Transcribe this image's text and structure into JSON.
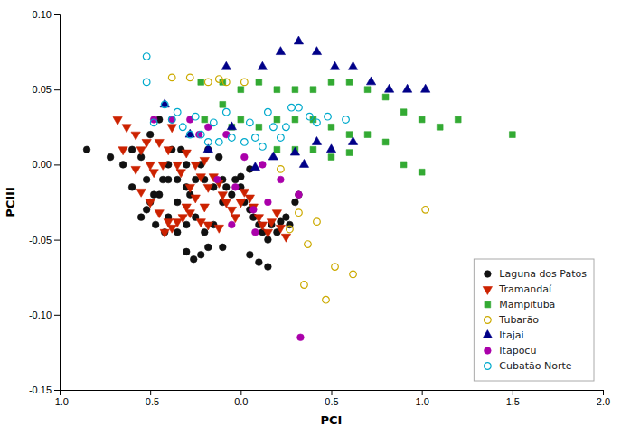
{
  "chart_data": {
    "type": "scatter",
    "xlabel": "PCI",
    "ylabel": "PCIII",
    "xlim": [
      -1.0,
      2.0
    ],
    "ylim": [
      -0.15,
      0.1
    ],
    "xticks": [
      {
        "value": -1.0,
        "label": "-1.0"
      },
      -0.5,
      {
        "value": 0.0,
        "label": "0.0"
      },
      0.5,
      {
        "value": 1.0,
        "label": "1.0"
      },
      1.5,
      {
        "value": 2.0,
        "label": "2.0"
      }
    ],
    "yticks": [
      -0.15,
      {
        "value": -0.1,
        "label": "-0.10"
      },
      -0.05,
      {
        "value": 0.0,
        "label": "0.00"
      },
      0.05,
      {
        "value": 0.1,
        "label": "0.10"
      }
    ],
    "grid": false,
    "legend": "lower right",
    "series": [
      {
        "name": "Laguna dos Patos",
        "color": "#111111",
        "marker": "circle",
        "x": [
          -0.85,
          -0.72,
          -0.65,
          -0.6,
          -0.55,
          -0.52,
          -0.5,
          -0.48,
          -0.45,
          -0.43,
          -0.4,
          -0.4,
          -0.38,
          -0.35,
          -0.33,
          -0.3,
          -0.3,
          -0.28,
          -0.25,
          -0.22,
          -0.2,
          -0.18,
          -0.15,
          -0.12,
          -0.1,
          -0.08,
          -0.05,
          -0.03,
          0.0,
          0.02,
          0.05,
          0.07,
          0.1,
          0.12,
          0.15,
          0.17,
          0.2,
          0.22,
          0.25,
          0.27,
          0.3,
          0.32,
          -0.35,
          -0.4,
          -0.45,
          -0.5,
          -0.55,
          -0.6,
          -0.25,
          -0.2,
          -0.15,
          -0.1,
          0.0,
          0.05,
          -0.3,
          -0.35,
          -0.42,
          -0.47,
          -0.52,
          -0.18,
          -0.22,
          -0.26,
          -0.3,
          -0.1,
          0.05,
          0.1,
          0.15
        ],
        "values": [
          0.01,
          0.005,
          0.0,
          0.01,
          0.005,
          -0.01,
          0.02,
          -0.02,
          0.03,
          -0.01,
          0.0,
          -0.01,
          0.01,
          -0.01,
          0.01,
          0.0,
          -0.015,
          -0.02,
          -0.01,
          0.0,
          -0.01,
          0.01,
          -0.015,
          0.005,
          -0.01,
          -0.015,
          -0.02,
          -0.01,
          -0.015,
          -0.025,
          -0.03,
          -0.035,
          -0.04,
          -0.045,
          -0.05,
          -0.04,
          -0.045,
          -0.038,
          -0.035,
          -0.04,
          -0.025,
          -0.02,
          -0.025,
          -0.035,
          -0.02,
          -0.025,
          -0.035,
          -0.015,
          -0.035,
          -0.045,
          -0.04,
          -0.025,
          -0.008,
          -0.003,
          -0.04,
          -0.045,
          -0.045,
          -0.04,
          -0.03,
          -0.055,
          -0.06,
          -0.063,
          -0.058,
          -0.055,
          -0.06,
          -0.065,
          -0.068
        ]
      },
      {
        "name": "Tramandaí",
        "color": "#cc2200",
        "marker": "triangle-down",
        "x": [
          -0.68,
          -0.63,
          -0.58,
          -0.55,
          -0.52,
          -0.5,
          -0.48,
          -0.45,
          -0.43,
          -0.4,
          -0.38,
          -0.35,
          -0.33,
          -0.3,
          -0.28,
          -0.25,
          -0.22,
          -0.2,
          -0.18,
          -0.15,
          -0.12,
          -0.1,
          -0.08,
          -0.05,
          -0.03,
          0.0,
          0.02,
          0.05,
          0.07,
          0.1,
          0.12,
          0.15,
          0.17,
          0.2,
          0.22,
          0.25,
          -0.55,
          -0.5,
          -0.45,
          -0.4,
          -0.35,
          -0.3,
          -0.25,
          -0.2,
          -0.65,
          -0.58,
          -0.42,
          -0.38,
          -0.32,
          -0.28,
          -0.22,
          -0.18,
          -0.12
        ],
        "values": [
          0.03,
          0.025,
          0.02,
          0.01,
          0.015,
          0.0,
          -0.005,
          0.015,
          0.0,
          0.01,
          0.025,
          0.0,
          -0.005,
          0.008,
          -0.015,
          0.0,
          -0.008,
          0.003,
          -0.015,
          -0.008,
          -0.012,
          -0.02,
          -0.025,
          -0.03,
          -0.035,
          -0.025,
          -0.018,
          -0.022,
          -0.028,
          -0.035,
          -0.04,
          -0.045,
          -0.038,
          -0.032,
          -0.042,
          -0.048,
          -0.018,
          -0.025,
          -0.032,
          -0.038,
          -0.038,
          -0.028,
          -0.022,
          -0.028,
          0.01,
          -0.003,
          -0.045,
          -0.042,
          -0.035,
          -0.032,
          -0.038,
          -0.04,
          -0.042
        ]
      },
      {
        "name": "Mampituba",
        "color": "#33aa33",
        "marker": "square",
        "x": [
          -0.22,
          -0.1,
          0.0,
          0.1,
          0.2,
          0.3,
          0.4,
          0.5,
          0.6,
          0.7,
          0.8,
          0.9,
          1.0,
          1.1,
          1.2,
          1.5,
          0.2,
          0.3,
          0.4,
          0.5,
          0.6,
          0.7,
          0.8,
          0.9,
          1.0,
          0.0,
          0.1,
          -0.1,
          -0.2,
          0.3,
          0.4,
          0.2,
          -0.05,
          0.5,
          0.6
        ],
        "values": [
          0.055,
          0.055,
          0.05,
          0.055,
          0.05,
          0.05,
          0.05,
          0.055,
          0.055,
          0.05,
          0.045,
          0.035,
          0.03,
          0.025,
          0.03,
          0.02,
          0.03,
          0.03,
          0.03,
          0.025,
          0.02,
          0.02,
          0.015,
          0.0,
          -0.005,
          0.03,
          0.025,
          0.04,
          0.03,
          0.01,
          0.01,
          0.01,
          0.025,
          0.005,
          0.008
        ]
      },
      {
        "name": "Tubarão",
        "color": "#ccaa00",
        "marker": "circle-open",
        "x": [
          -0.18,
          -0.08,
          0.02,
          -0.28,
          -0.38,
          0.22,
          0.32,
          0.42,
          0.52,
          0.62,
          0.37,
          0.27,
          1.02,
          -0.12,
          0.35,
          0.47
        ],
        "values": [
          0.055,
          0.055,
          0.055,
          0.058,
          0.058,
          -0.003,
          -0.032,
          -0.038,
          -0.068,
          -0.073,
          -0.053,
          -0.043,
          -0.03,
          0.057,
          -0.08,
          -0.09
        ]
      },
      {
        "name": "Itajai",
        "color": "#000088",
        "marker": "triangle-up",
        "x": [
          -0.42,
          -0.28,
          -0.08,
          0.12,
          0.32,
          0.42,
          0.52,
          0.62,
          0.72,
          0.82,
          0.92,
          1.02,
          0.22,
          0.5,
          0.62,
          0.42,
          0.3,
          0.18,
          -0.18,
          0.08,
          -0.05,
          0.35
        ],
        "values": [
          0.04,
          0.02,
          0.065,
          0.065,
          0.082,
          0.075,
          0.065,
          0.065,
          0.055,
          0.05,
          0.05,
          0.05,
          0.075,
          0.01,
          0.015,
          0.015,
          0.008,
          0.005,
          0.01,
          -0.002,
          0.025,
          0.0
        ]
      },
      {
        "name": "Itapocu",
        "color": "#aa00aa",
        "marker": "circle",
        "x": [
          -0.38,
          -0.28,
          -0.18,
          -0.08,
          0.02,
          0.12,
          0.22,
          0.32,
          -0.13,
          -0.03,
          0.07,
          0.15,
          -0.23,
          -0.48,
          0.33,
          -0.05,
          0.08
        ],
        "values": [
          0.03,
          0.03,
          0.025,
          0.02,
          0.005,
          0.0,
          -0.01,
          -0.02,
          -0.01,
          -0.015,
          -0.03,
          -0.025,
          0.02,
          0.03,
          -0.115,
          -0.04,
          -0.045
        ]
      },
      {
        "name": "Cubatão Norte",
        "color": "#00aacc",
        "marker": "circle-open",
        "x": [
          -0.52,
          -0.52,
          -0.42,
          -0.38,
          -0.32,
          -0.28,
          -0.22,
          -0.18,
          -0.12,
          -0.05,
          0.02,
          0.08,
          0.12,
          0.18,
          0.22,
          0.28,
          0.32,
          0.38,
          0.42,
          -0.48,
          -0.35,
          -0.25,
          -0.15,
          0.05,
          -0.08,
          0.15,
          0.25,
          0.48,
          0.58
        ],
        "values": [
          0.072,
          0.055,
          0.04,
          0.03,
          0.025,
          0.02,
          0.02,
          0.015,
          0.015,
          0.018,
          0.015,
          0.018,
          0.012,
          0.025,
          0.018,
          0.038,
          0.038,
          0.032,
          0.028,
          0.028,
          0.035,
          0.032,
          0.028,
          0.028,
          0.035,
          0.035,
          0.025,
          0.032,
          0.03
        ]
      }
    ]
  }
}
